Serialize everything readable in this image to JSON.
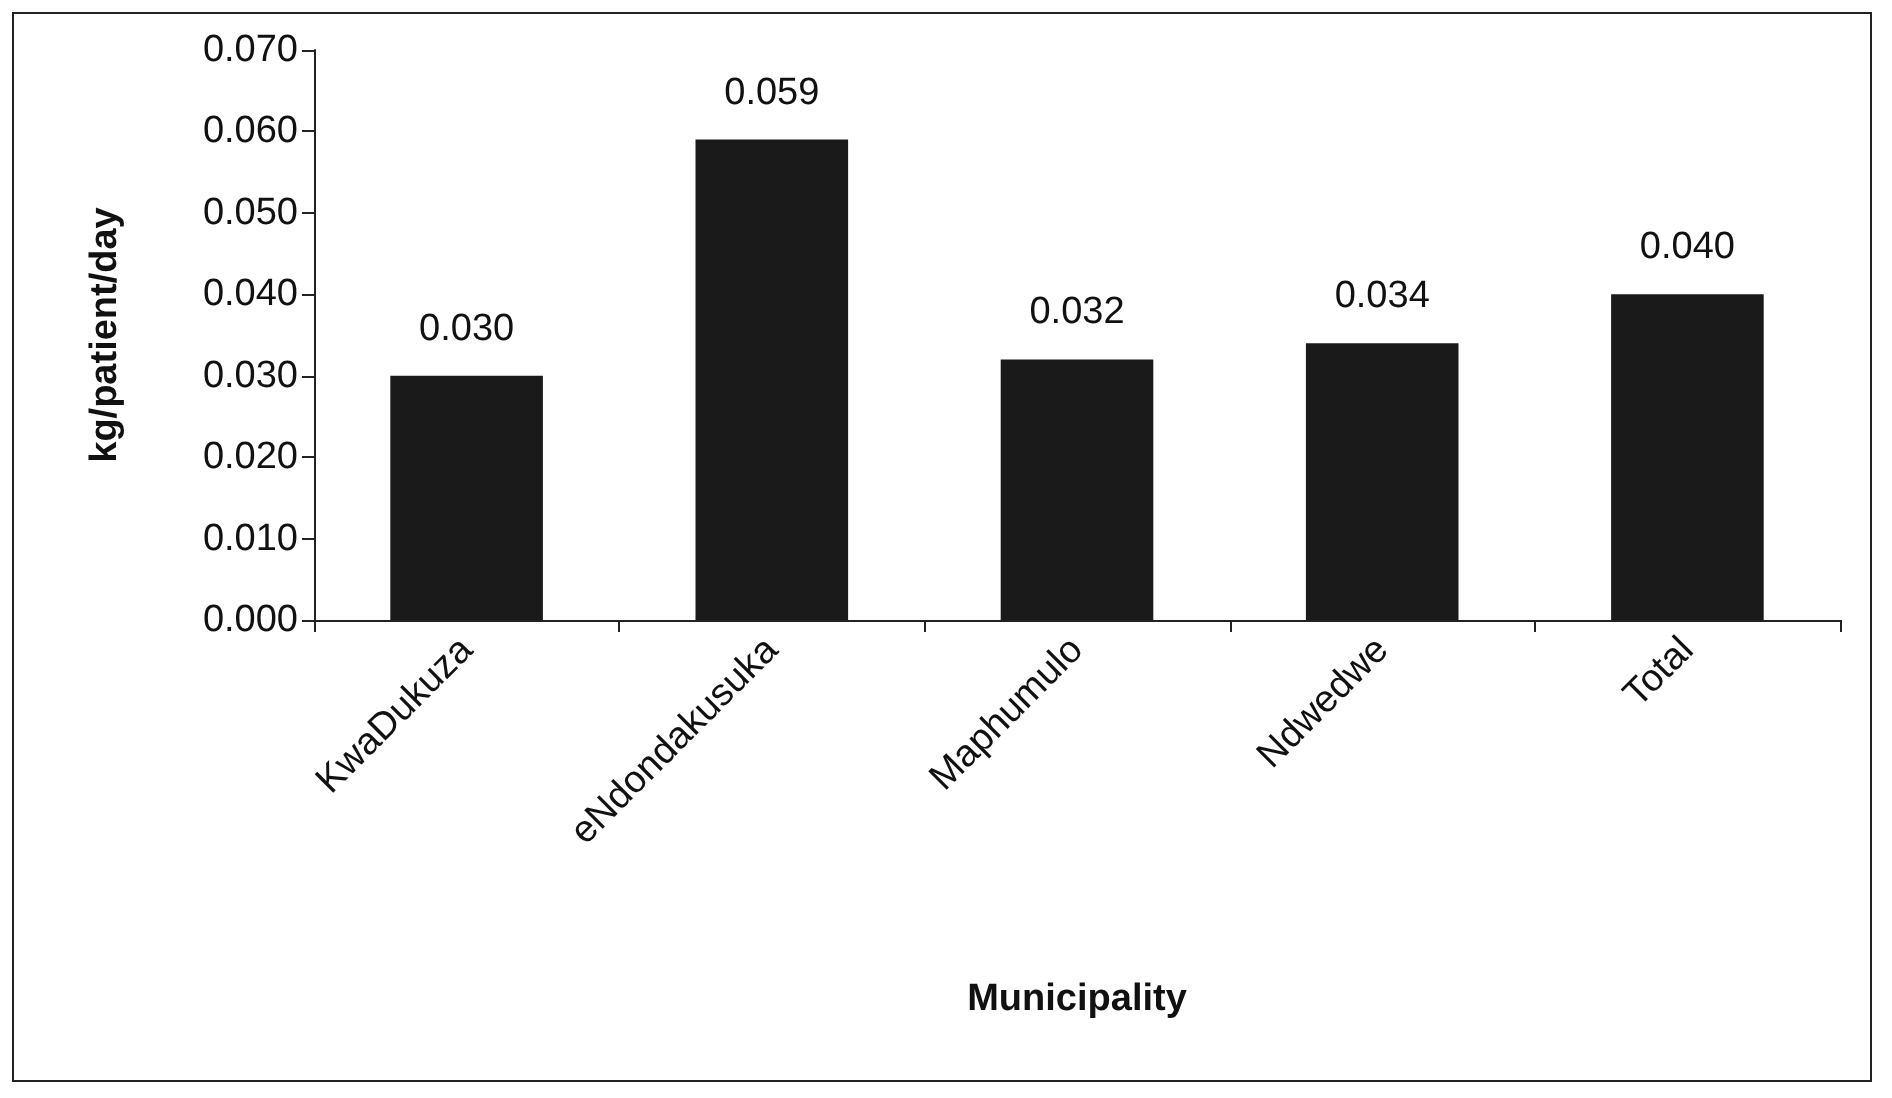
{
  "chart_data": {
    "type": "bar",
    "xlabel": "Municipality",
    "ylabel": "kg/patient/day",
    "categories": [
      "KwaDukuza",
      "eNdondakusuka",
      "Maphumulo",
      "Ndwedwe",
      "Total"
    ],
    "values": [
      0.03,
      0.059,
      0.032,
      0.034,
      0.04
    ],
    "value_labels": [
      "0.030",
      "0.059",
      "0.032",
      "0.034",
      "0.040"
    ],
    "color": "#1a1a1a",
    "ylim": [
      0,
      0.07
    ],
    "yticks": [
      {
        "value": 0,
        "label": "0.000"
      },
      {
        "value": 0.01,
        "label": "0.010"
      },
      {
        "value": 0.02,
        "label": "0.020"
      },
      {
        "value": 0.03,
        "label": "0.030"
      },
      {
        "value": 0.04,
        "label": "0.040"
      },
      {
        "value": 0.05,
        "label": "0.050"
      },
      {
        "value": 0.06,
        "label": "0.060"
      },
      {
        "value": 0.07,
        "label": "0.070"
      }
    ],
    "grid": false
  }
}
